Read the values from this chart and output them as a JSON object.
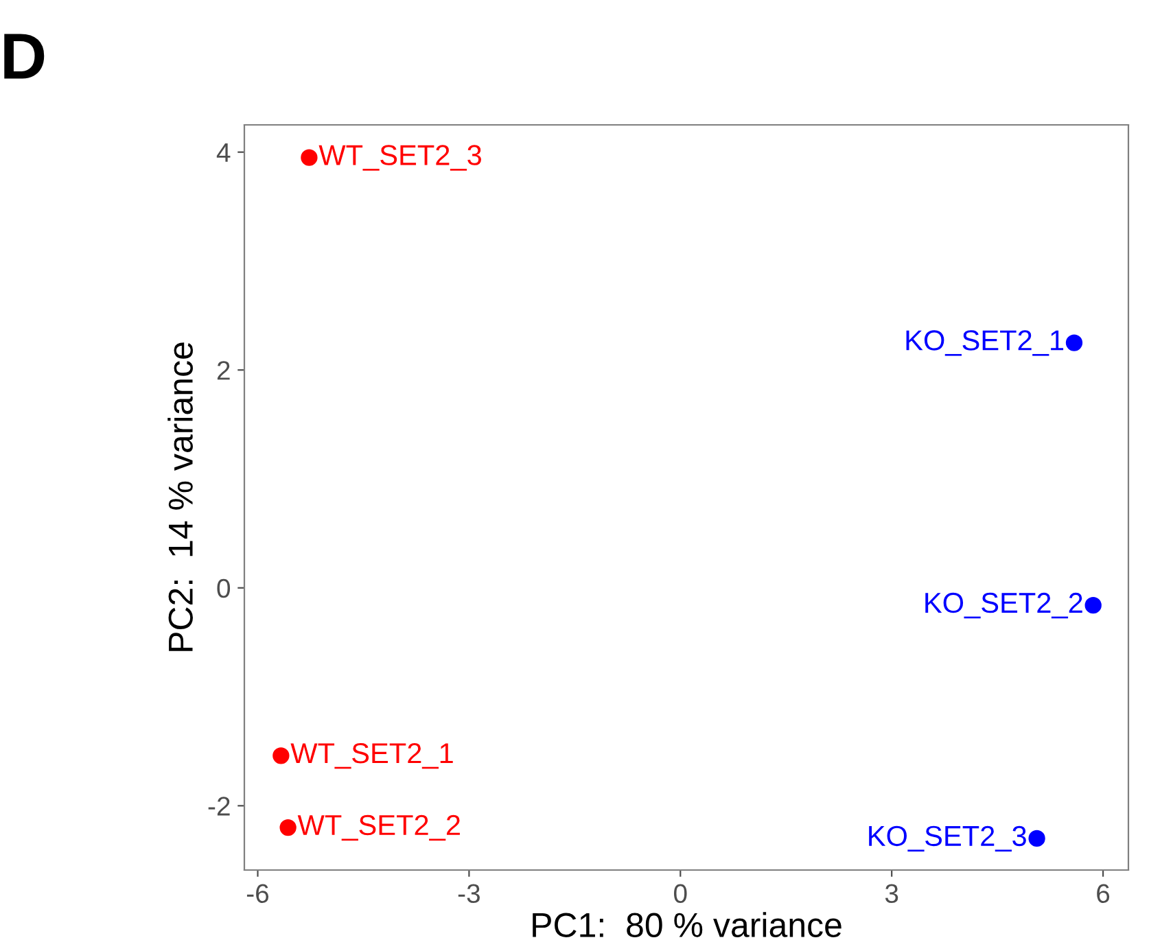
{
  "chart_data": {
    "type": "scatter",
    "xlabel": "PC1:  80 % variance",
    "ylabel": "PC2:  14 % variance",
    "xlim": [
      -6.19,
      6.36
    ],
    "ylim": [
      -2.59,
      4.25
    ],
    "xticks": [
      -6,
      -3,
      0,
      3,
      6
    ],
    "yticks": [
      -2,
      0,
      2,
      4
    ],
    "grid": false,
    "legend": false,
    "marker": "circle",
    "series": [
      {
        "color": "#ff0000",
        "x": [
          -5.27,
          -5.67,
          -5.57
        ],
        "values": [
          3.95,
          -1.54,
          -2.2
        ]
      },
      {
        "color": "#0000ff",
        "x": [
          5.59,
          5.86,
          5.06
        ],
        "values": [
          2.25,
          -0.16,
          -2.3
        ]
      }
    ],
    "annotations": [
      "D",
      {
        "text": "WT_SET2_3",
        "x": -5.27,
        "y": 3.95
      },
      {
        "text": "WT_SET2_1",
        "x": -5.67,
        "y": -1.54
      },
      {
        "text": "WT_SET2_2",
        "x": -5.57,
        "y": -2.2
      },
      {
        "text": "KO_SET2_1",
        "x": 5.59,
        "y": 2.25
      },
      {
        "text": "KO_SET2_2",
        "x": 5.86,
        "y": -0.16
      },
      {
        "text": "KO_SET2_3",
        "x": 5.06,
        "y": -2.3
      }
    ]
  }
}
